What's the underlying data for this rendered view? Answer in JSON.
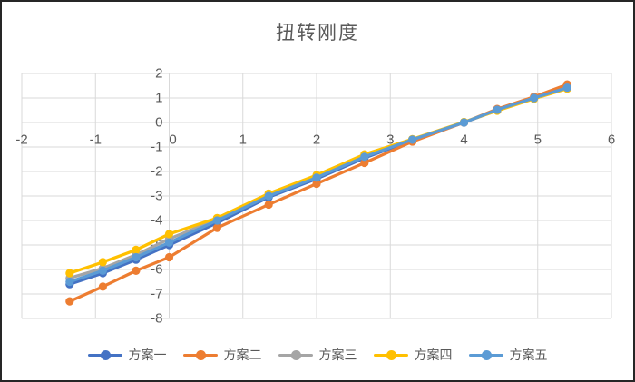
{
  "frame": {
    "background": "#ffffff",
    "border_color": "#262626"
  },
  "chart_data": {
    "type": "line",
    "title": "扭转刚度",
    "title_color": "#595959",
    "axis_label_color": "#595959",
    "gridline_color": "#D9D9D9",
    "grid": true,
    "legend_position": "bottom",
    "xlim": [
      -2,
      6
    ],
    "ylim": [
      -8,
      2
    ],
    "x_ticks": [
      -2,
      -1,
      0,
      1,
      2,
      3,
      4,
      5,
      6
    ],
    "y_ticks": [
      2,
      1,
      0,
      -1,
      -2,
      -3,
      -4,
      -5,
      -6,
      -7,
      -8
    ],
    "x": [
      -1.35,
      -0.9,
      -0.45,
      0,
      0.65,
      1.35,
      2,
      2.65,
      3.3,
      4,
      4.45,
      4.95,
      5.4
    ],
    "series": [
      {
        "id": "plan-1",
        "name": "方案一",
        "color": "#4472C4",
        "values": [
          -6.6,
          -6.15,
          -5.6,
          -5.0,
          -4.1,
          -3.05,
          -2.3,
          -1.45,
          -0.72,
          0,
          0.5,
          1.0,
          1.4
        ]
      },
      {
        "id": "plan-2",
        "name": "方案二",
        "color": "#ED7D31",
        "values": [
          -7.3,
          -6.7,
          -6.05,
          -5.5,
          -4.3,
          -3.35,
          -2.5,
          -1.65,
          -0.78,
          0,
          0.55,
          1.05,
          1.55
        ]
      },
      {
        "id": "plan-3",
        "name": "方案三",
        "color": "#A5A5A5",
        "values": [
          -6.35,
          -5.95,
          -5.4,
          -4.75,
          -3.95,
          -2.95,
          -2.2,
          -1.35,
          -0.7,
          0,
          0.5,
          1.0,
          1.4
        ]
      },
      {
        "id": "plan-4",
        "name": "方案四",
        "color": "#FFC000",
        "values": [
          -6.15,
          -5.7,
          -5.2,
          -4.55,
          -3.9,
          -2.9,
          -2.15,
          -1.3,
          -0.68,
          0.02,
          0.48,
          0.97,
          1.38
        ]
      },
      {
        "id": "plan-5",
        "name": "方案五",
        "color": "#5B9BD5",
        "values": [
          -6.5,
          -6.05,
          -5.5,
          -4.9,
          -4.0,
          -3.0,
          -2.25,
          -1.4,
          -0.7,
          0,
          0.52,
          1.0,
          1.42
        ]
      }
    ]
  }
}
